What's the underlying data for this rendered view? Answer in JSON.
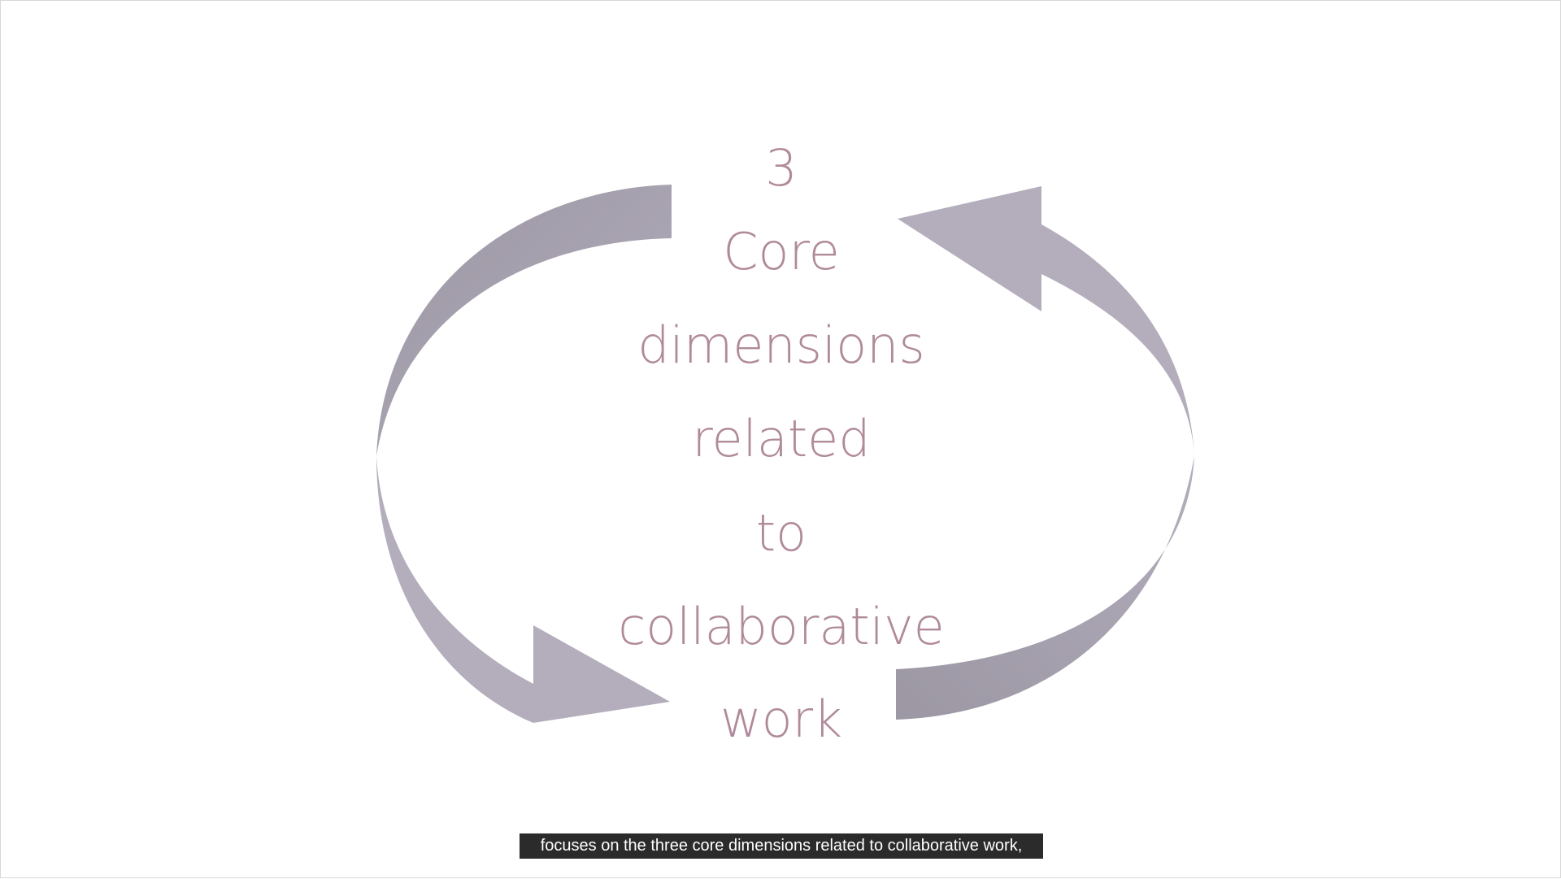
{
  "diagram": {
    "lines": [
      "3",
      "Core",
      "dimensions",
      "related",
      "to",
      "collaborative",
      "work"
    ],
    "text_color": "#b08a9a",
    "arrow_color_light": "#b5aebd",
    "arrow_color_dark": "#9f9aa7"
  },
  "caption": {
    "text": "focuses on the three core dimensions related to collaborative work,"
  }
}
